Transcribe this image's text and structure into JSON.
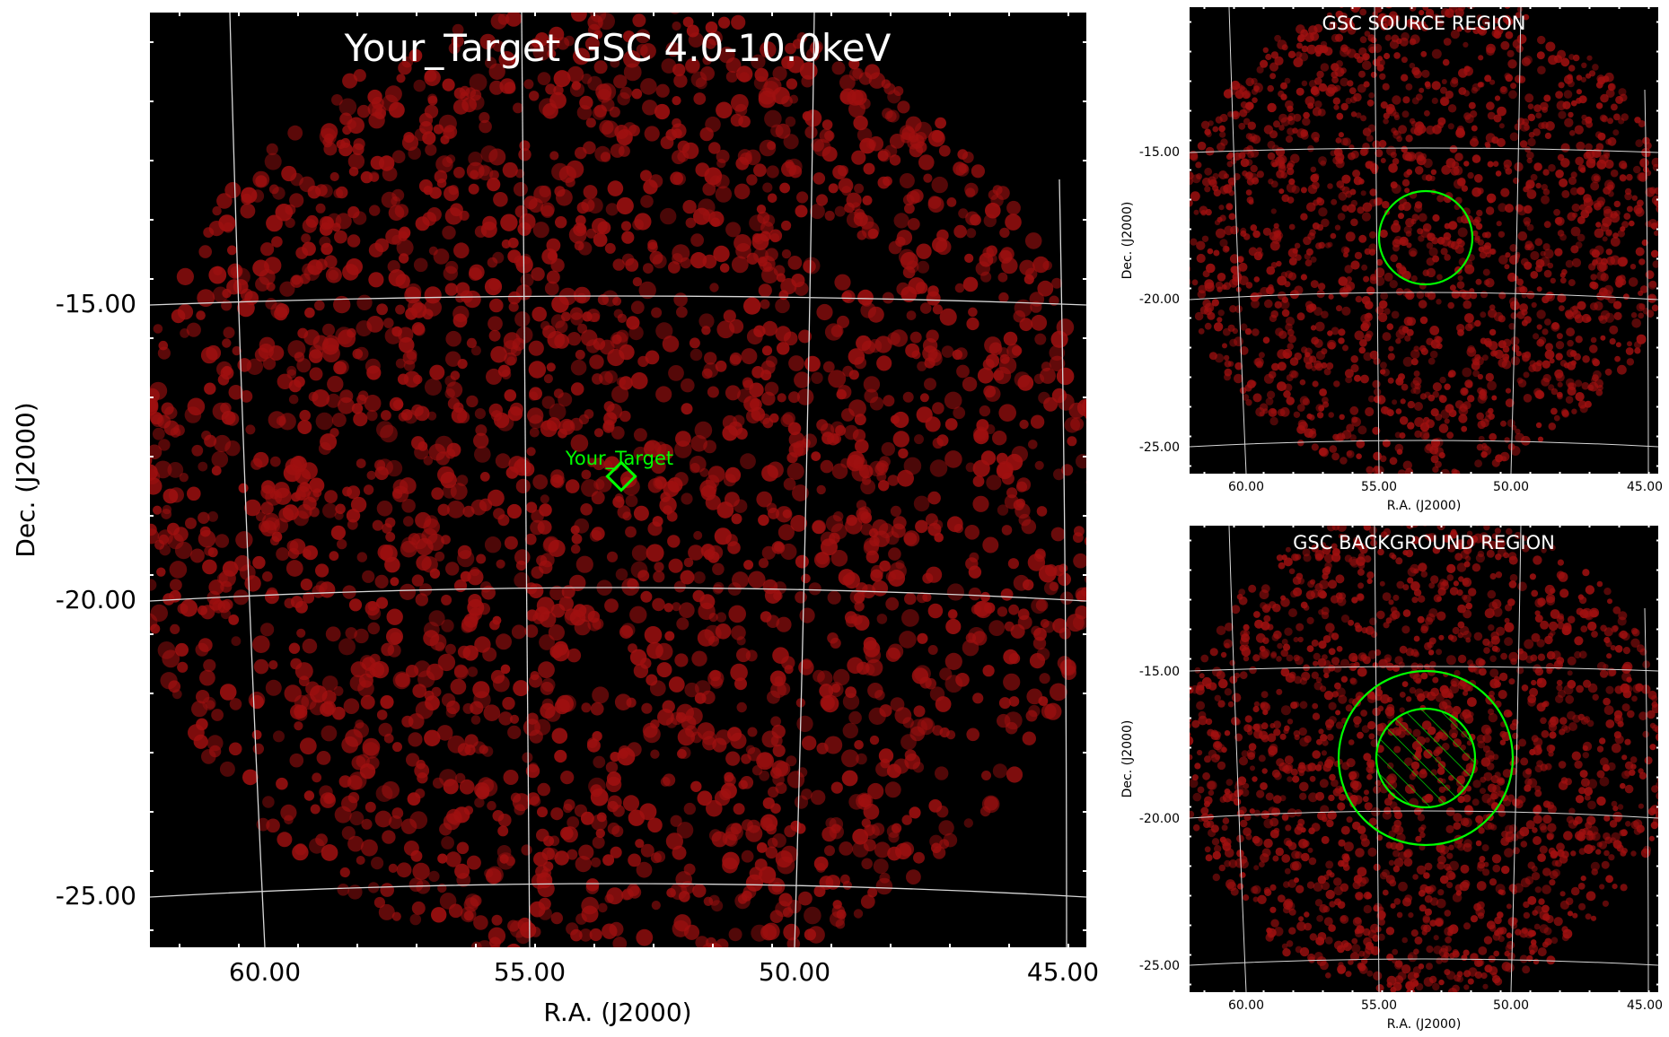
{
  "colors": {
    "panel_bg": "#000000",
    "counts": "#a01010",
    "grid": "#d8d8d8",
    "region": "#00ff00",
    "text_on_image": "#ffffff"
  },
  "chart_data": [
    {
      "type": "heatmap",
      "title": "Your_Target GSC 4.0-10.0keV",
      "xlabel": "R.A. (J2000)",
      "ylabel": "Dec. (J2000)",
      "xticks": [
        "60.00",
        "55.00",
        "50.00",
        "45.00"
      ],
      "yticks": [
        "-15.00",
        "-20.00",
        "-25.00"
      ],
      "xlim": [
        57.8,
        45.5
      ],
      "ylim": [
        -16.0,
        -25.5
      ],
      "grid": true,
      "field_center": {
        "ra": 53.4,
        "dec": -20.3
      },
      "source": {
        "label": "Your_Target",
        "ra": 53.25,
        "dec": -18.65,
        "marker": "diamond"
      }
    },
    {
      "type": "heatmap",
      "title": "GSC SOURCE REGION",
      "xlabel": "R.A. (J2000)",
      "ylabel": "Dec. (J2000)",
      "xticks": [
        "60.00",
        "55.00",
        "50.00",
        "45.00"
      ],
      "yticks": [
        "-15.00",
        "-20.00",
        "-25.00"
      ],
      "grid": true,
      "regions": [
        {
          "kind": "source circle",
          "ra": 53.35,
          "dec": -18.25,
          "radius_deg": 1.6
        }
      ]
    },
    {
      "type": "heatmap",
      "title": "GSC BACKGROUND REGION",
      "xlabel": "R.A. (J2000)",
      "ylabel": "Dec. (J2000)",
      "xticks": [
        "60.00",
        "55.00",
        "50.00",
        "45.00"
      ],
      "yticks": [
        "-15.00",
        "-20.00",
        "-25.00"
      ],
      "grid": true,
      "regions": [
        {
          "kind": "background annulus outer",
          "ra": 53.35,
          "dec": -18.25,
          "radius_deg": 3.0
        },
        {
          "kind": "excluded inner (hatched)",
          "ra": 53.35,
          "dec": -18.25,
          "radius_deg": 1.7
        }
      ]
    }
  ]
}
